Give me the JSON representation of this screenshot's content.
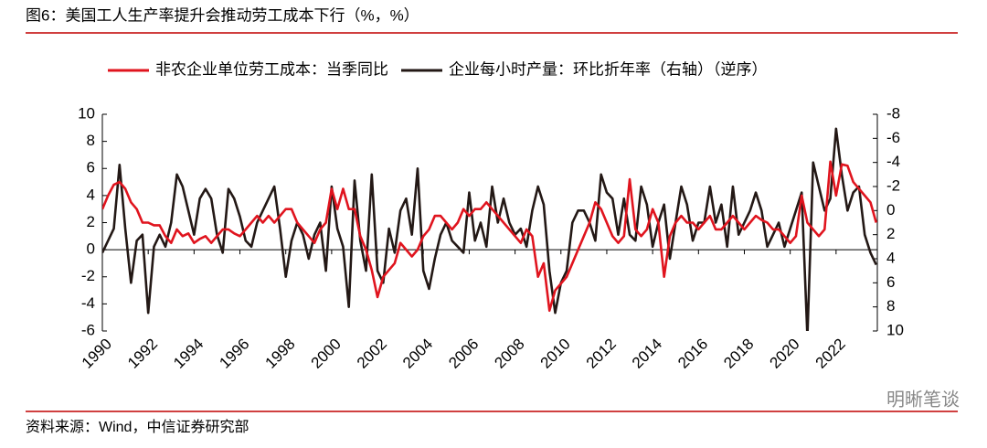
{
  "chart_data": {
    "type": "line",
    "title": "图6：美国工人生产率提升会推动劳工成本下行（%，%）",
    "source": "资料来源：Wind，中信证券研究部",
    "watermark": "明晰笔谈",
    "x": [
      1990,
      1990.25,
      1990.5,
      1990.75,
      1991,
      1991.25,
      1991.5,
      1991.75,
      1992,
      1992.25,
      1992.5,
      1992.75,
      1993,
      1993.25,
      1993.5,
      1993.75,
      1994,
      1994.25,
      1994.5,
      1994.75,
      1995,
      1995.25,
      1995.5,
      1995.75,
      1996,
      1996.25,
      1996.5,
      1996.75,
      1997,
      1997.25,
      1997.5,
      1997.75,
      1998,
      1998.25,
      1998.5,
      1998.75,
      1999,
      1999.25,
      1999.5,
      1999.75,
      2000,
      2000.25,
      2000.5,
      2000.75,
      2001,
      2001.25,
      2001.5,
      2001.75,
      2002,
      2002.25,
      2002.5,
      2002.75,
      2003,
      2003.25,
      2003.5,
      2003.75,
      2004,
      2004.25,
      2004.5,
      2004.75,
      2005,
      2005.25,
      2005.5,
      2005.75,
      2006,
      2006.25,
      2006.5,
      2006.75,
      2007,
      2007.25,
      2007.5,
      2007.75,
      2008,
      2008.25,
      2008.5,
      2008.75,
      2009,
      2009.25,
      2009.5,
      2009.75,
      2010,
      2010.25,
      2010.5,
      2010.75,
      2011,
      2011.25,
      2011.5,
      2011.75,
      2012,
      2012.25,
      2012.5,
      2012.75,
      2013,
      2013.25,
      2013.5,
      2013.75,
      2014,
      2014.25,
      2014.5,
      2014.75,
      2015,
      2015.25,
      2015.5,
      2015.75,
      2016,
      2016.25,
      2016.5,
      2016.75,
      2017,
      2017.25,
      2017.5,
      2017.75,
      2018,
      2018.25,
      2018.5,
      2018.75,
      2019,
      2019.25,
      2019.5,
      2019.75,
      2020,
      2020.25,
      2020.5,
      2020.75,
      2021,
      2021.25,
      2021.5,
      2021.75,
      2022,
      2022.25,
      2022.5,
      2022.75,
      2023,
      2023.25,
      2023.5,
      2023.75
    ],
    "series": [
      {
        "name": "非农企业单位劳工成本：当季同比",
        "color": "#e0141e",
        "axis": "y",
        "values": [
          3,
          4,
          4.8,
          5,
          4.5,
          3.5,
          3,
          2,
          2,
          1.8,
          1.8,
          1,
          0.5,
          1.5,
          1,
          1.2,
          0.5,
          0.8,
          1,
          0.5,
          1,
          1.5,
          1.5,
          1.2,
          1,
          1.5,
          2,
          2.5,
          2,
          2.5,
          2,
          2.5,
          3,
          3,
          2,
          1.5,
          1,
          0.5,
          1.5,
          2,
          4.5,
          3,
          4.5,
          3,
          3,
          1,
          0,
          -1.5,
          -3.5,
          -2,
          -1.5,
          -1,
          0.5,
          0,
          -0.5,
          0,
          1,
          1.5,
          2.5,
          2.5,
          2,
          1.5,
          2,
          3,
          2.5,
          3,
          3,
          3.5,
          3,
          2.5,
          2,
          1.5,
          1,
          0.5,
          1.5,
          1,
          -2,
          -1,
          -4.5,
          -3,
          -2.5,
          -2,
          -1,
          0,
          1,
          2,
          3.5,
          3,
          2,
          1,
          0.5,
          1,
          5.2,
          1.5,
          1,
          1.5,
          3,
          2,
          -2,
          1,
          2,
          2.5,
          2,
          2,
          1.5,
          2,
          2.5,
          1.5,
          1.5,
          2,
          2.5,
          2,
          1.5,
          2,
          2.5,
          2.2,
          2,
          1.5,
          1.5,
          1,
          0.5,
          1,
          4,
          2,
          1.5,
          1,
          1.5,
          6.5,
          4,
          6.3,
          6.2,
          5,
          4.5,
          4,
          3.5,
          2
        ]
      },
      {
        "name": "企业每小时产量：环比折年率（右轴）（逆序）",
        "color": "#231815",
        "axis": "y2",
        "values": [
          3.5,
          2.5,
          1.5,
          -3.8,
          1.5,
          6,
          2.5,
          2,
          8.5,
          3,
          2,
          3,
          1,
          -3,
          -2,
          0,
          2,
          -1,
          -1.8,
          -1,
          2,
          3.5,
          -1.8,
          -1,
          0.5,
          2.5,
          3,
          1,
          0,
          -1,
          -2,
          1.5,
          5.5,
          2.5,
          1,
          2,
          4,
          2,
          1,
          5,
          -2,
          1.5,
          3,
          8,
          -2.5,
          2.5,
          5,
          -3,
          5,
          6,
          1.5,
          3.5,
          0,
          -1,
          2,
          -3.5,
          5,
          6.5,
          4,
          2,
          1,
          2.5,
          3,
          3.5,
          -1.5,
          2.5,
          1,
          3,
          -2,
          1,
          -1,
          1,
          2,
          1.5,
          3,
          0,
          -2,
          -0.5,
          5,
          8.5,
          6,
          5,
          1,
          0,
          0,
          1,
          2.5,
          -3,
          -1.5,
          -1,
          2,
          -1,
          2,
          2.5,
          -2,
          -0.5,
          3,
          1,
          -0.5,
          4,
          1,
          -2,
          -0.5,
          2.5,
          1,
          1,
          -2,
          1,
          -0.5,
          3,
          -2,
          2,
          1,
          0,
          -1.5,
          0,
          3,
          2,
          1,
          3,
          1.5,
          0,
          -1.5,
          10.5,
          -4,
          -2,
          0,
          -1,
          -6.8,
          -3,
          0,
          -1.5,
          -2,
          2,
          3.5,
          4.5
        ]
      }
    ],
    "xlim": [
      1990,
      2023.8
    ],
    "xticks": [
      1990,
      1992,
      1994,
      1996,
      1998,
      2000,
      2002,
      2004,
      2006,
      2008,
      2010,
      2012,
      2014,
      2016,
      2018,
      2020,
      2022
    ],
    "ylim": [
      -6,
      10
    ],
    "yticks": [
      -6,
      -4,
      -2,
      0,
      2,
      4,
      6,
      8,
      10
    ],
    "y2lim": [
      10,
      -8
    ],
    "y2ticks": [
      -8,
      -6,
      -4,
      -2,
      0,
      2,
      4,
      6,
      8,
      10
    ],
    "legend": "top"
  }
}
